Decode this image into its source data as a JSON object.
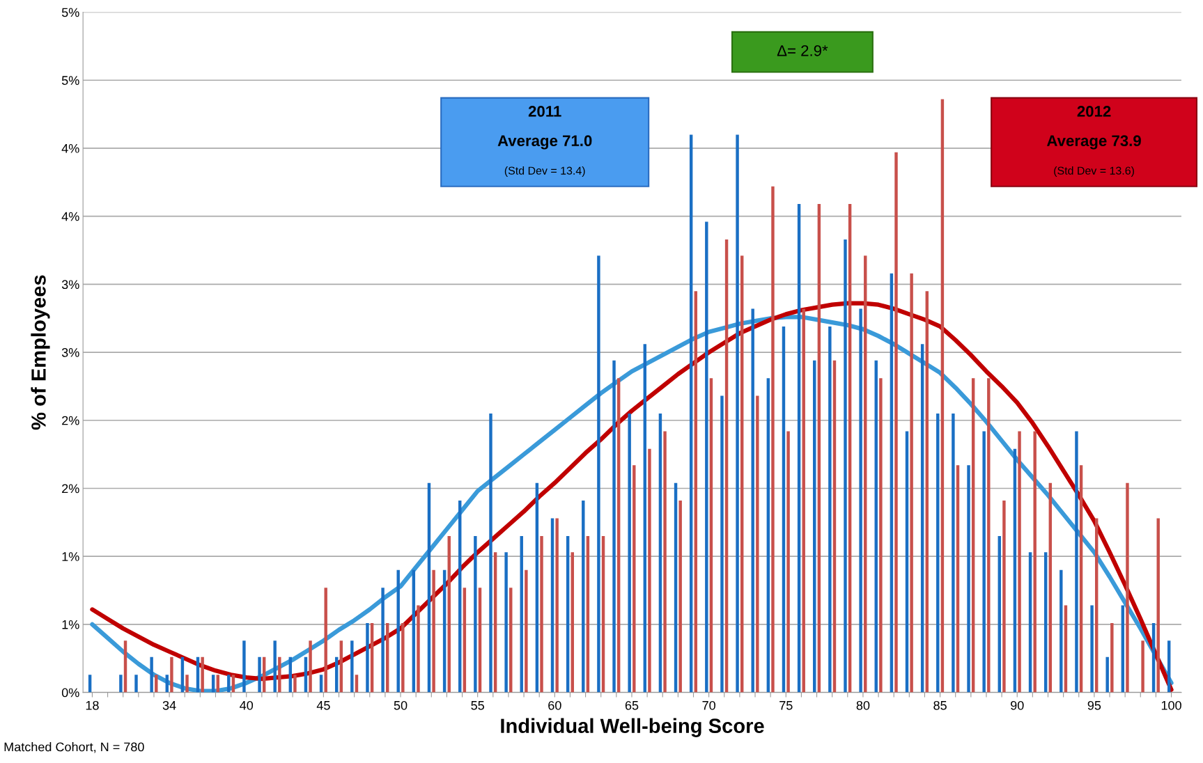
{
  "chart_data": {
    "type": "bar",
    "xlabel": "Individual Well-being Score",
    "ylabel": "% of Employees",
    "categories": [
      "18",
      null,
      null,
      null,
      null,
      "34",
      null,
      null,
      null,
      null,
      "40",
      null,
      null,
      null,
      null,
      "45",
      null,
      null,
      null,
      null,
      "50",
      null,
      null,
      null,
      null,
      "55",
      null,
      null,
      null,
      null,
      "60",
      null,
      null,
      null,
      null,
      "65",
      null,
      null,
      null,
      null,
      "70",
      null,
      null,
      null,
      null,
      "75",
      null,
      null,
      null,
      null,
      "80",
      null,
      null,
      null,
      null,
      "85",
      null,
      null,
      null,
      null,
      "90",
      null,
      null,
      null,
      null,
      "95",
      null,
      null,
      null,
      null,
      "100"
    ],
    "series": [
      {
        "color": "#1a6fc4",
        "values": [
          0.13,
          0,
          0.13,
          0.13,
          0.26,
          0.13,
          0.26,
          0.26,
          0.13,
          0.13,
          0.38,
          0.26,
          0.38,
          0.26,
          0.26,
          0.13,
          0.26,
          0.38,
          0.51,
          0.77,
          0.9,
          0.9,
          1.54,
          0.9,
          1.41,
          1.15,
          2.05,
          1.03,
          1.15,
          1.54,
          1.28,
          1.15,
          1.41,
          3.21,
          2.44,
          2.05,
          2.56,
          2.05,
          1.54,
          4.1,
          3.46,
          2.18,
          4.1,
          2.82,
          2.31,
          2.69,
          3.59,
          2.44,
          2.69,
          3.33,
          2.82,
          2.44,
          3.08,
          1.92,
          2.56,
          2.05,
          2.05,
          1.67,
          1.92,
          1.15,
          1.79,
          1.03,
          1.03,
          0.9,
          1.92,
          0.64,
          0.26,
          0.64,
          0,
          0.51,
          0.38
        ]
      },
      {
        "color": "#c8504b",
        "values": [
          0,
          0,
          0.38,
          0,
          0.13,
          0.26,
          0.13,
          0.26,
          0.13,
          0.13,
          0,
          0.26,
          0.26,
          0.13,
          0.38,
          0.77,
          0.38,
          0.13,
          0.51,
          0.51,
          0.51,
          0.64,
          0.9,
          1.15,
          0.77,
          0.77,
          1.03,
          0.77,
          0.9,
          1.15,
          1.28,
          1.03,
          1.15,
          1.15,
          2.31,
          1.67,
          1.79,
          1.92,
          1.41,
          2.95,
          2.31,
          3.33,
          3.21,
          2.18,
          3.72,
          1.92,
          2.82,
          3.59,
          2.44,
          3.59,
          3.21,
          2.31,
          3.97,
          3.08,
          2.95,
          4.36,
          1.67,
          2.31,
          2.31,
          1.41,
          1.92,
          1.92,
          1.54,
          0.64,
          1.67,
          1.28,
          0.51,
          1.54,
          0.38,
          1.28,
          0
        ]
      },
      {
        "type": "line",
        "color": "#3a9ad9",
        "values": [
          0.5,
          0.4,
          0.3,
          0.21,
          0.13,
          0.07,
          0.03,
          0.01,
          0.01,
          0.03,
          0.07,
          0.12,
          0.18,
          0.24,
          0.31,
          0.38,
          0.46,
          0.53,
          0.61,
          0.7,
          0.78,
          0.92,
          1.06,
          1.2,
          1.34,
          1.48,
          1.57,
          1.66,
          1.75,
          1.84,
          1.93,
          2.02,
          2.11,
          2.2,
          2.28,
          2.36,
          2.42,
          2.48,
          2.54,
          2.6,
          2.65,
          2.68,
          2.71,
          2.73,
          2.75,
          2.76,
          2.76,
          2.74,
          2.72,
          2.7,
          2.67,
          2.62,
          2.56,
          2.49,
          2.42,
          2.35,
          2.24,
          2.12,
          1.99,
          1.85,
          1.71,
          1.58,
          1.45,
          1.31,
          1.17,
          1.03,
          0.85,
          0.66,
          0.47,
          0.27,
          0.07
        ]
      },
      {
        "type": "line",
        "color": "#c00000",
        "values": [
          0.61,
          0.54,
          0.47,
          0.41,
          0.35,
          0.3,
          0.25,
          0.2,
          0.16,
          0.13,
          0.11,
          0.1,
          0.11,
          0.12,
          0.14,
          0.17,
          0.22,
          0.28,
          0.34,
          0.4,
          0.47,
          0.58,
          0.69,
          0.8,
          0.92,
          1.03,
          1.13,
          1.23,
          1.33,
          1.44,
          1.54,
          1.65,
          1.76,
          1.86,
          1.97,
          2.07,
          2.16,
          2.25,
          2.34,
          2.42,
          2.5,
          2.57,
          2.64,
          2.69,
          2.74,
          2.78,
          2.81,
          2.83,
          2.85,
          2.86,
          2.86,
          2.85,
          2.82,
          2.78,
          2.74,
          2.69,
          2.59,
          2.48,
          2.36,
          2.25,
          2.13,
          1.98,
          1.81,
          1.63,
          1.45,
          1.26,
          1.03,
          0.79,
          0.54,
          0.28,
          0.02
        ]
      }
    ],
    "ylim": [
      0,
      5
    ],
    "yticks": [
      {
        "value": 0,
        "label": "0%"
      },
      {
        "value": 0.5,
        "label": "1%"
      },
      {
        "value": 1,
        "label": "1%"
      },
      {
        "value": 1.5,
        "label": "2%"
      },
      {
        "value": 2,
        "label": "2%"
      },
      {
        "value": 2.5,
        "label": "3%"
      },
      {
        "value": 3,
        "label": "3%"
      },
      {
        "value": 3.5,
        "label": "4%"
      },
      {
        "value": 4,
        "label": "4%"
      },
      {
        "value": 4.5,
        "label": "5%"
      },
      {
        "value": 5,
        "label": "5%"
      }
    ],
    "grid": "y",
    "annotations": [
      "Δ= 2.9*",
      "2011",
      "Average 71.0",
      "(Std Dev = 13.4)",
      "2012",
      "Average 73.9",
      "(Std Dev = 13.6)",
      "Matched Cohort, N = 780"
    ]
  }
}
